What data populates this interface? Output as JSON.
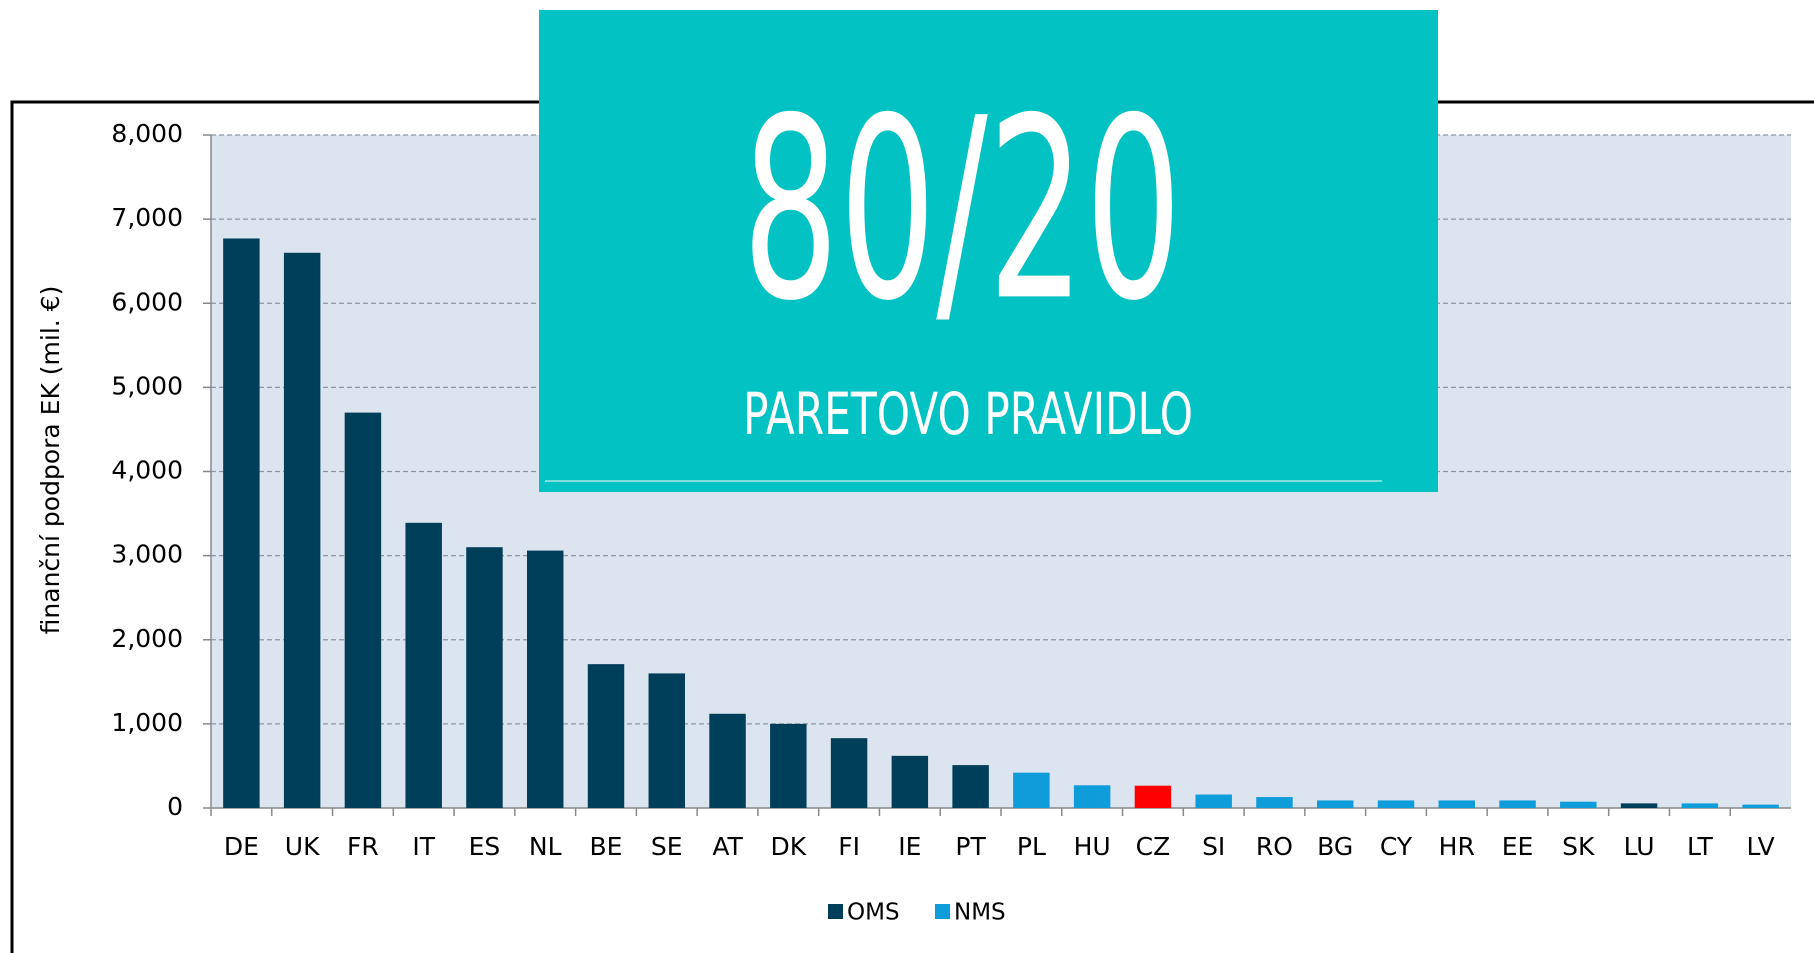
{
  "chart_data": {
    "type": "bar",
    "y_label": "finanční podpora EK (mil. €)",
    "categories": [
      "DE",
      "UK",
      "FR",
      "IT",
      "ES",
      "NL",
      "BE",
      "SE",
      "AT",
      "DK",
      "FI",
      "IE",
      "PT",
      "PL",
      "HU",
      "CZ",
      "SI",
      "RO",
      "BG",
      "CY",
      "HR",
      "EE",
      "SK",
      "LU",
      "LT",
      "LV"
    ],
    "series": [
      {
        "name": "OMS",
        "color": "#003f5a",
        "values": [
          6770,
          6600,
          4700,
          3390,
          3100,
          3060,
          1710,
          1600,
          1120,
          1000,
          830,
          620,
          510,
          null,
          null,
          null,
          null,
          null,
          null,
          null,
          null,
          null,
          null,
          55,
          null,
          null
        ]
      },
      {
        "name": "NMS",
        "color": "#0e9cdb",
        "values": [
          null,
          null,
          null,
          null,
          null,
          null,
          null,
          null,
          null,
          null,
          null,
          null,
          null,
          420,
          270,
          265,
          160,
          130,
          90,
          90,
          90,
          90,
          75,
          null,
          55,
          40
        ]
      }
    ],
    "highlight_category": "CZ",
    "highlight_color": "#ff0000",
    "ylim": [
      0,
      8000
    ],
    "yticks": [
      0,
      {
        "value": 1000,
        "label": "1,000"
      },
      {
        "value": 2000,
        "label": "2,000"
      },
      {
        "value": 3000,
        "label": "3,000"
      },
      {
        "value": 4000,
        "label": "4,000"
      },
      {
        "value": 5000,
        "label": "5,000"
      },
      {
        "value": 6000,
        "label": "6,000"
      },
      {
        "value": 7000,
        "label": "7,000"
      },
      {
        "value": 8000,
        "label": "8,000"
      }
    ],
    "grid": true,
    "legend": "bottom"
  },
  "overlay": {
    "headline": "80/20",
    "caption": "PARETOVO PRAVIDLO"
  }
}
